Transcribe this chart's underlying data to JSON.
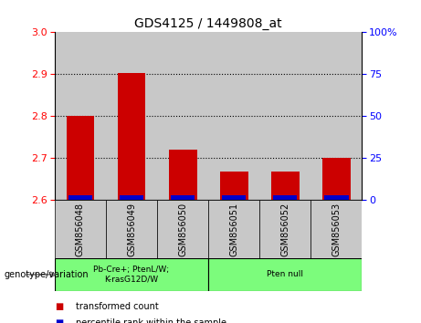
{
  "title": "GDS4125 / 1449808_at",
  "categories": [
    "GSM856048",
    "GSM856049",
    "GSM856050",
    "GSM856051",
    "GSM856052",
    "GSM856053"
  ],
  "red_values": [
    2.8,
    2.903,
    2.72,
    2.668,
    2.668,
    2.7
  ],
  "ylim_left": [
    2.6,
    3.0
  ],
  "ylim_right": [
    0,
    100
  ],
  "yticks_left": [
    2.6,
    2.7,
    2.8,
    2.9,
    3.0
  ],
  "yticks_right": [
    0,
    25,
    50,
    75,
    100
  ],
  "ytick_labels_right": [
    "0",
    "25",
    "50",
    "75",
    "100%"
  ],
  "dotted_lines": [
    2.7,
    2.8,
    2.9
  ],
  "group1_label": "Pb-Cre+; PtenL/W;\nK-rasG12D/W",
  "group2_label": "Pten null",
  "group_bg_color": "#7CFC7C",
  "sample_bg_color": "#C8C8C8",
  "bar_color": "#CC0000",
  "blue_color": "#0000CC",
  "legend_red_label": "transformed count",
  "legend_blue_label": "percentile rank within the sample",
  "genotype_label": "genotype/variation",
  "bar_width": 0.55,
  "blue_bar_height": 0.012
}
